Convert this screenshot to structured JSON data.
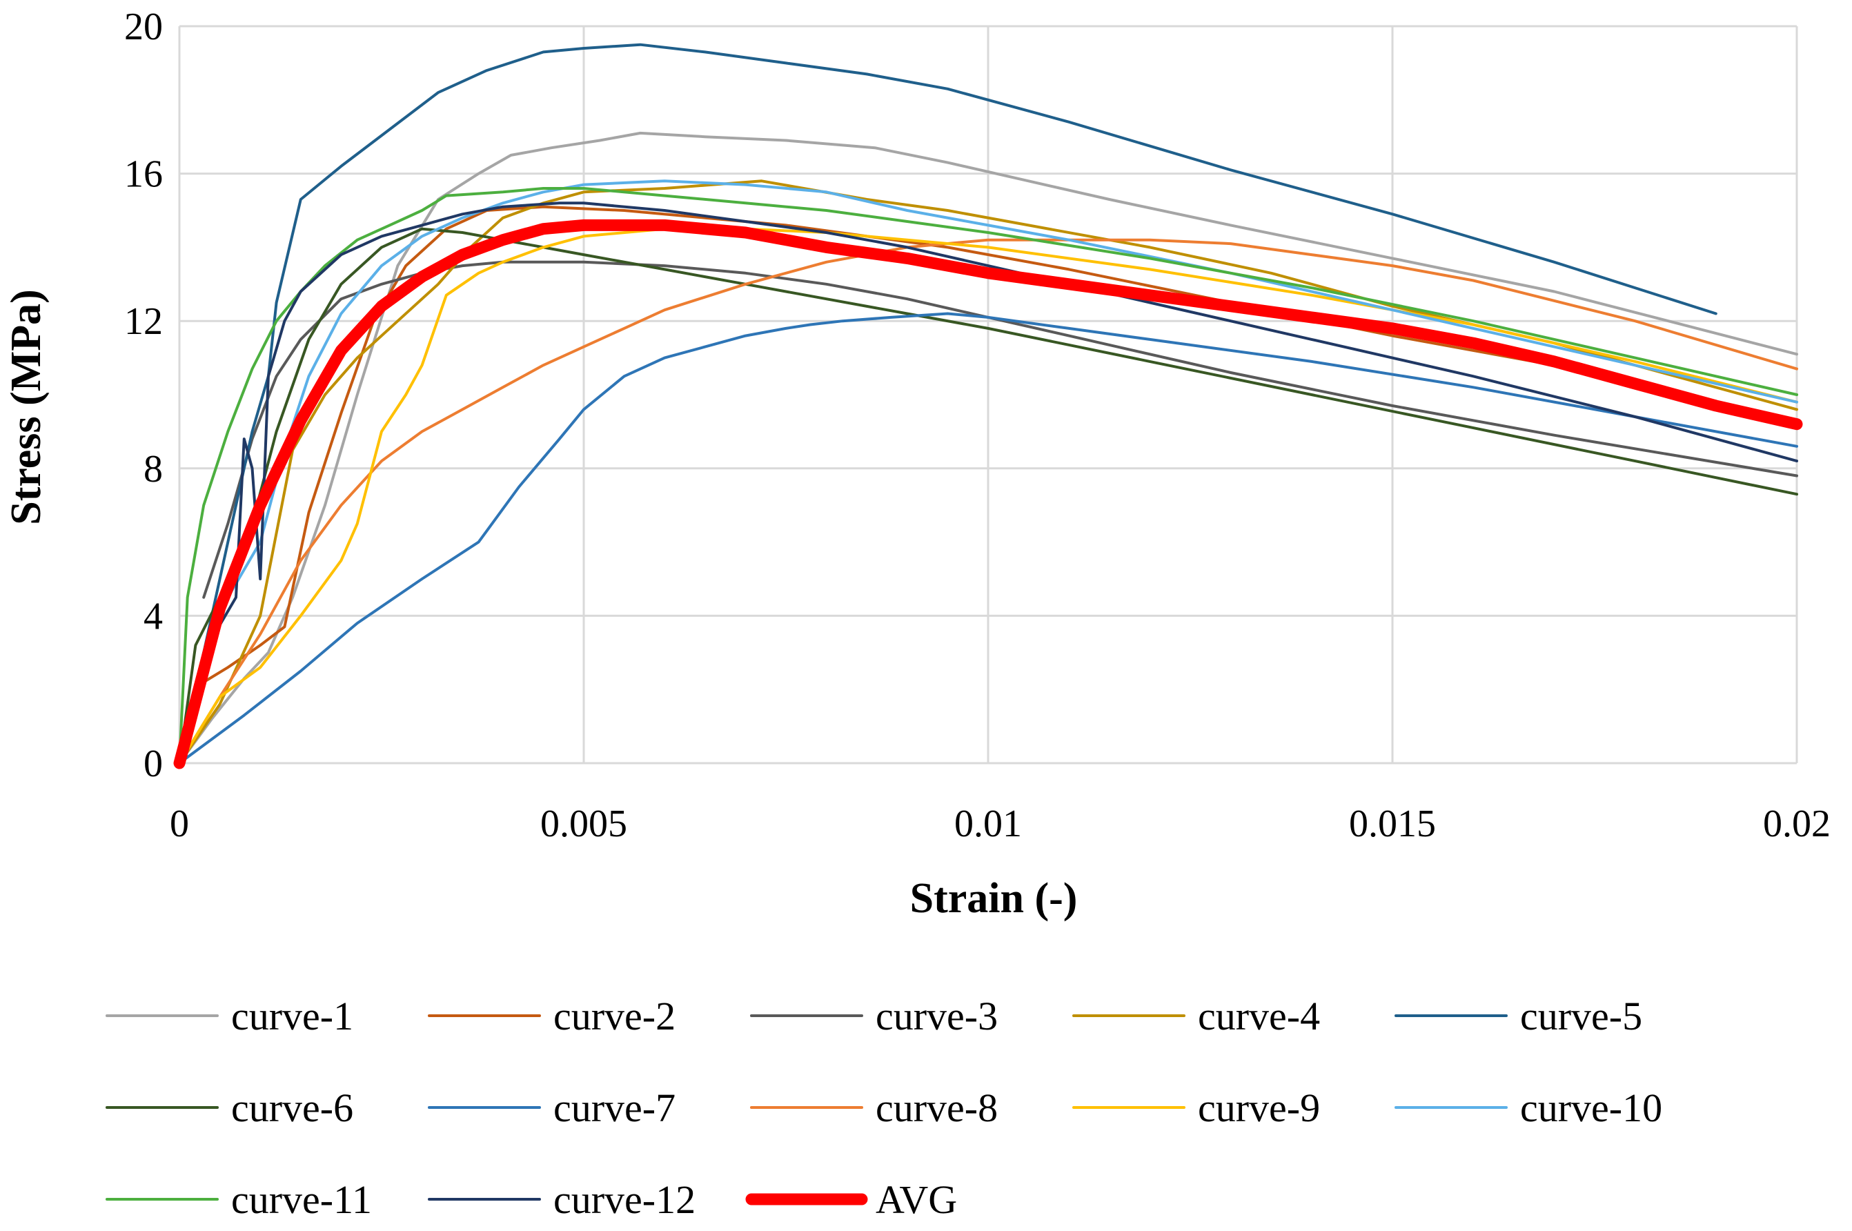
{
  "chart_data": {
    "type": "line",
    "title": "",
    "xlabel": "Strain (-)",
    "ylabel": "Stress (MPa)",
    "xlim": [
      0,
      0.02
    ],
    "ylim": [
      0,
      20
    ],
    "x_ticks": [
      0,
      0.005,
      0.01,
      0.015,
      0.02
    ],
    "x_tick_labels": [
      "0",
      "0.005",
      "0.01",
      "0.015",
      "0.02"
    ],
    "y_ticks": [
      0,
      4,
      8,
      12,
      16,
      20
    ],
    "y_tick_labels": [
      "0",
      "4",
      "8",
      "12",
      "16",
      "20"
    ],
    "grid": true,
    "legend_position": "bottom",
    "series": [
      {
        "name": "curve-1",
        "color": "#a5a5a5",
        "width": 4,
        "x": [
          0,
          0.0004,
          0.0008,
          0.0011,
          0.0014,
          0.0018,
          0.0022,
          0.0027,
          0.0032,
          0.0037,
          0.0041,
          0.0046,
          0.0052,
          0.0057,
          0.0065,
          0.0075,
          0.0086,
          0.0095,
          0.0105,
          0.0115,
          0.013,
          0.015,
          0.017,
          0.02
        ],
        "y": [
          0,
          1.2,
          2.3,
          3.0,
          4.5,
          7.0,
          10.0,
          13.5,
          15.3,
          16.0,
          16.5,
          16.7,
          16.9,
          17.1,
          17.0,
          16.9,
          16.7,
          16.3,
          15.8,
          15.3,
          14.6,
          13.7,
          12.8,
          11.1
        ]
      },
      {
        "name": "curve-2",
        "color": "#c55a11",
        "width": 4,
        "x": [
          0,
          0.0003,
          0.0006,
          0.001,
          0.0013,
          0.0016,
          0.002,
          0.0024,
          0.0028,
          0.0033,
          0.0038,
          0.0045,
          0.0055,
          0.0065,
          0.0075,
          0.0085,
          0.0095,
          0.011,
          0.013,
          0.015,
          0.017,
          0.02
        ],
        "y": [
          0,
          2.2,
          2.6,
          3.2,
          3.7,
          6.8,
          9.5,
          12.0,
          13.5,
          14.5,
          15.0,
          15.1,
          15.0,
          14.8,
          14.6,
          14.3,
          14.0,
          13.4,
          12.5,
          11.6,
          10.8,
          9.2
        ]
      },
      {
        "name": "curve-3",
        "color": "#595959",
        "width": 4,
        "x": [
          0.0003,
          0.0006,
          0.0009,
          0.0012,
          0.0015,
          0.002,
          0.0025,
          0.003,
          0.0035,
          0.004,
          0.0046,
          0.005,
          0.006,
          0.007,
          0.008,
          0.009,
          0.01,
          0.011,
          0.013,
          0.015,
          0.017,
          0.02
        ],
        "y": [
          4.5,
          6.5,
          8.8,
          10.5,
          11.5,
          12.6,
          13.0,
          13.3,
          13.5,
          13.6,
          13.6,
          13.6,
          13.5,
          13.3,
          13.0,
          12.6,
          12.1,
          11.6,
          10.6,
          9.7,
          8.9,
          7.8
        ]
      },
      {
        "name": "curve-4",
        "color": "#bf8f00",
        "width": 4,
        "x": [
          0,
          0.0005,
          0.001,
          0.0014,
          0.0018,
          0.0022,
          0.0027,
          0.0032,
          0.0036,
          0.004,
          0.0045,
          0.005,
          0.006,
          0.0072,
          0.0085,
          0.0095,
          0.0105,
          0.012,
          0.0135,
          0.015,
          0.017,
          0.02
        ],
        "y": [
          0,
          1.6,
          4.0,
          8.5,
          10.0,
          11.0,
          12.0,
          13.0,
          14.0,
          14.8,
          15.2,
          15.5,
          15.6,
          15.8,
          15.3,
          15.0,
          14.6,
          14.0,
          13.3,
          12.4,
          11.4,
          9.6
        ]
      },
      {
        "name": "curve-5",
        "color": "#1f5f8b",
        "width": 4,
        "x": [
          0,
          0.0003,
          0.0006,
          0.0009,
          0.0011,
          0.0012,
          0.0015,
          0.002,
          0.0026,
          0.0032,
          0.0038,
          0.0045,
          0.005,
          0.0057,
          0.0065,
          0.0075,
          0.0085,
          0.0095,
          0.011,
          0.013,
          0.015,
          0.017,
          0.019
        ],
        "y": [
          0,
          3.0,
          6.0,
          9.0,
          10.5,
          12.5,
          15.3,
          16.2,
          17.2,
          18.2,
          18.8,
          19.3,
          19.4,
          19.5,
          19.3,
          19.0,
          18.7,
          18.3,
          17.4,
          16.1,
          14.9,
          13.6,
          12.2
        ]
      },
      {
        "name": "curve-6",
        "color": "#385723",
        "width": 4,
        "x": [
          0,
          0.0002,
          0.0005,
          0.0009,
          0.0012,
          0.0016,
          0.002,
          0.0025,
          0.003,
          0.0035,
          0.004,
          0.0045,
          0.005,
          0.006,
          0.007,
          0.008,
          0.009,
          0.01,
          0.012,
          0.014,
          0.016,
          0.018,
          0.02
        ],
        "y": [
          0,
          3.2,
          4.5,
          6.5,
          9.0,
          11.5,
          13.0,
          14.0,
          14.5,
          14.4,
          14.2,
          14.0,
          13.8,
          13.4,
          13.0,
          12.6,
          12.2,
          11.8,
          10.9,
          10.0,
          9.1,
          8.2,
          7.3
        ]
      },
      {
        "name": "curve-7",
        "color": "#2e75b6",
        "width": 4,
        "x": [
          0,
          0.0008,
          0.0015,
          0.0022,
          0.003,
          0.0037,
          0.0042,
          0.0047,
          0.005,
          0.0055,
          0.006,
          0.0065,
          0.007,
          0.0075,
          0.0078,
          0.0082,
          0.0088,
          0.0095,
          0.01,
          0.011,
          0.012,
          0.014,
          0.016,
          0.018,
          0.02
        ],
        "y": [
          0,
          1.3,
          2.5,
          3.8,
          5.0,
          6.0,
          7.5,
          8.8,
          9.6,
          10.5,
          11.0,
          11.3,
          11.6,
          11.8,
          11.9,
          12.0,
          12.1,
          12.2,
          12.1,
          11.8,
          11.5,
          10.9,
          10.2,
          9.4,
          8.6
        ]
      },
      {
        "name": "curve-8",
        "color": "#ed7d31",
        "width": 4,
        "x": [
          0,
          0.0005,
          0.001,
          0.0015,
          0.002,
          0.0025,
          0.003,
          0.0035,
          0.004,
          0.0045,
          0.005,
          0.0055,
          0.006,
          0.007,
          0.008,
          0.009,
          0.01,
          0.011,
          0.012,
          0.013,
          0.014,
          0.015,
          0.016,
          0.018,
          0.02
        ],
        "y": [
          0,
          1.8,
          3.5,
          5.5,
          7.0,
          8.2,
          9.0,
          9.6,
          10.2,
          10.8,
          11.3,
          11.8,
          12.3,
          13.0,
          13.6,
          14.0,
          14.2,
          14.2,
          14.2,
          14.1,
          13.8,
          13.5,
          13.1,
          12.0,
          10.7
        ]
      },
      {
        "name": "curve-9",
        "color": "#ffc000",
        "width": 4,
        "x": [
          0,
          0.0005,
          0.001,
          0.0015,
          0.002,
          0.0022,
          0.0025,
          0.0028,
          0.003,
          0.0033,
          0.0037,
          0.004,
          0.0045,
          0.005,
          0.006,
          0.007,
          0.008,
          0.009,
          0.01,
          0.012,
          0.014,
          0.016,
          0.018,
          0.02
        ],
        "y": [
          0,
          1.8,
          2.6,
          4.0,
          5.5,
          6.5,
          9.0,
          10.0,
          10.8,
          12.7,
          13.3,
          13.6,
          14.0,
          14.3,
          14.5,
          14.5,
          14.4,
          14.2,
          14.0,
          13.4,
          12.7,
          11.9,
          10.9,
          9.8
        ]
      },
      {
        "name": "curve-10",
        "color": "#5bb0e8",
        "width": 4,
        "x": [
          0,
          0.0003,
          0.0006,
          0.001,
          0.0013,
          0.0016,
          0.002,
          0.0025,
          0.003,
          0.0035,
          0.004,
          0.0045,
          0.005,
          0.006,
          0.007,
          0.008,
          0.009,
          0.01,
          0.011,
          0.013,
          0.015,
          0.017,
          0.02
        ],
        "y": [
          0,
          3.0,
          4.5,
          6.0,
          8.5,
          10.5,
          12.2,
          13.5,
          14.3,
          14.8,
          15.2,
          15.5,
          15.7,
          15.8,
          15.7,
          15.5,
          15.0,
          14.6,
          14.2,
          13.3,
          12.3,
          11.3,
          9.8
        ]
      },
      {
        "name": "curve-11",
        "color": "#4caf3f",
        "width": 4,
        "x": [
          0,
          0.0001,
          0.0003,
          0.0006,
          0.0009,
          0.0012,
          0.0015,
          0.0018,
          0.0022,
          0.0026,
          0.003,
          0.0033,
          0.004,
          0.0045,
          0.005,
          0.006,
          0.007,
          0.008,
          0.009,
          0.01,
          0.012,
          0.014,
          0.016,
          0.018,
          0.02
        ],
        "y": [
          0,
          4.5,
          7.0,
          9.0,
          10.7,
          12.0,
          12.8,
          13.5,
          14.2,
          14.6,
          15.0,
          15.4,
          15.5,
          15.6,
          15.6,
          15.4,
          15.2,
          15.0,
          14.7,
          14.4,
          13.7,
          12.9,
          12.0,
          11.0,
          10.0
        ]
      },
      {
        "name": "curve-12",
        "color": "#203864",
        "width": 4,
        "x": [
          0,
          0.0003,
          0.0007,
          0.0008,
          0.0009,
          0.001,
          0.0011,
          0.0013,
          0.0015,
          0.002,
          0.0025,
          0.003,
          0.0035,
          0.004,
          0.0047,
          0.005,
          0.006,
          0.007,
          0.008,
          0.009,
          0.01,
          0.012,
          0.014,
          0.016,
          0.018,
          0.02
        ],
        "y": [
          0,
          3.0,
          4.5,
          8.8,
          8.0,
          5.0,
          10.5,
          12.0,
          12.8,
          13.8,
          14.3,
          14.6,
          14.9,
          15.1,
          15.2,
          15.2,
          15.0,
          14.7,
          14.4,
          14.0,
          13.5,
          12.5,
          11.5,
          10.5,
          9.4,
          8.2
        ]
      },
      {
        "name": "AVG",
        "color": "#ff0000",
        "width": 17,
        "x": [
          0,
          0.0005,
          0.001,
          0.0015,
          0.002,
          0.0025,
          0.003,
          0.0035,
          0.004,
          0.0045,
          0.005,
          0.0055,
          0.006,
          0.007,
          0.008,
          0.009,
          0.01,
          0.011,
          0.012,
          0.013,
          0.014,
          0.015,
          0.016,
          0.017,
          0.018,
          0.019,
          0.02
        ],
        "y": [
          0,
          4.2,
          7.0,
          9.3,
          11.2,
          12.4,
          13.2,
          13.8,
          14.2,
          14.5,
          14.6,
          14.6,
          14.6,
          14.4,
          14.0,
          13.7,
          13.3,
          13.0,
          12.7,
          12.4,
          12.1,
          11.8,
          11.4,
          10.9,
          10.3,
          9.7,
          9.2
        ]
      }
    ]
  }
}
